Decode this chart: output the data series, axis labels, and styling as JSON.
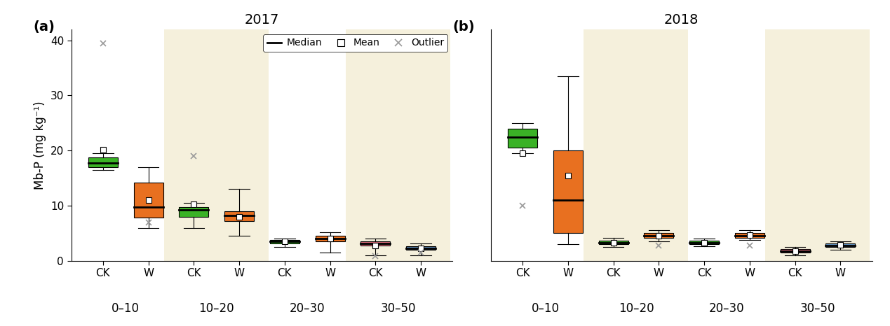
{
  "title_a": "2017",
  "title_b": "2018",
  "label_a": "(a)",
  "label_b": "(b)",
  "ylabel": "Mb-P (mg kg⁻¹)",
  "ylim": [
    0,
    42
  ],
  "yticks": [
    0,
    10,
    20,
    30,
    40
  ],
  "depth_labels": [
    "0–10",
    "10–20",
    "20–30",
    "30–50"
  ],
  "bg_color_shaded": "#f5f0dc",
  "green": "#3ab226",
  "orange": "#e87020",
  "red_box": "#e87080",
  "blue": "#6090c0",
  "outlier_color": "#999999",
  "panel_a": {
    "boxes": [
      {
        "x": 1,
        "q1": 17.0,
        "median": 17.8,
        "q3": 18.8,
        "whislo": 16.5,
        "whishi": 19.5,
        "mean": 20.2,
        "fliers": [
          39.5
        ],
        "color": "#3ab226"
      },
      {
        "x": 2,
        "q1": 7.8,
        "median": 9.8,
        "q3": 14.2,
        "whislo": 6.0,
        "whishi": 17.0,
        "mean": 11.0,
        "fliers": [
          7.0
        ],
        "color": "#e87020"
      },
      {
        "x": 3,
        "q1": 8.0,
        "median": 9.2,
        "q3": 9.8,
        "whislo": 6.0,
        "whishi": 10.5,
        "mean": 10.3,
        "fliers": [
          19.0
        ],
        "color": "#3ab226"
      },
      {
        "x": 4,
        "q1": 7.2,
        "median": 8.2,
        "q3": 9.0,
        "whislo": 4.5,
        "whishi": 13.0,
        "mean": 8.0,
        "fliers": [],
        "color": "#e87020"
      },
      {
        "x": 5,
        "q1": 3.2,
        "median": 3.5,
        "q3": 3.8,
        "whislo": 2.5,
        "whishi": 4.0,
        "mean": 3.5,
        "fliers": [],
        "color": "#3ab226"
      },
      {
        "x": 6,
        "q1": 3.5,
        "median": 4.0,
        "q3": 4.6,
        "whislo": 1.5,
        "whishi": 5.2,
        "mean": 4.0,
        "fliers": [],
        "color": "#e87020"
      },
      {
        "x": 7,
        "q1": 2.8,
        "median": 3.2,
        "q3": 3.5,
        "whislo": 1.0,
        "whishi": 4.0,
        "mean": 2.8,
        "fliers": [
          0.8
        ],
        "color": "#e87080"
      },
      {
        "x": 8,
        "q1": 2.0,
        "median": 2.3,
        "q3": 2.7,
        "whislo": 1.0,
        "whishi": 3.2,
        "mean": 2.2,
        "fliers": [
          1.5
        ],
        "color": "#6090c0"
      }
    ]
  },
  "panel_b": {
    "boxes": [
      {
        "x": 1,
        "q1": 20.5,
        "median": 22.5,
        "q3": 24.0,
        "whislo": 19.5,
        "whishi": 25.0,
        "mean": 19.5,
        "fliers": [
          10.0
        ],
        "color": "#3ab226"
      },
      {
        "x": 2,
        "q1": 5.0,
        "median": 11.0,
        "q3": 20.0,
        "whislo": 3.0,
        "whishi": 33.5,
        "mean": 15.5,
        "fliers": [],
        "color": "#e87020"
      },
      {
        "x": 3,
        "q1": 3.0,
        "median": 3.3,
        "q3": 3.7,
        "whislo": 2.5,
        "whishi": 4.2,
        "mean": 3.3,
        "fliers": [],
        "color": "#3ab226"
      },
      {
        "x": 4,
        "q1": 4.2,
        "median": 4.5,
        "q3": 5.0,
        "whislo": 3.5,
        "whishi": 5.5,
        "mean": 4.6,
        "fliers": [
          2.8
        ],
        "color": "#e87020"
      },
      {
        "x": 5,
        "q1": 3.0,
        "median": 3.3,
        "q3": 3.7,
        "whislo": 2.6,
        "whishi": 4.0,
        "mean": 3.3,
        "fliers": [],
        "color": "#3ab226"
      },
      {
        "x": 6,
        "q1": 4.2,
        "median": 4.6,
        "q3": 5.0,
        "whislo": 3.8,
        "whishi": 5.5,
        "mean": 4.7,
        "fliers": [
          2.8
        ],
        "color": "#e87020"
      },
      {
        "x": 7,
        "q1": 1.5,
        "median": 1.8,
        "q3": 2.1,
        "whislo": 1.0,
        "whishi": 2.5,
        "mean": 1.8,
        "fliers": [],
        "color": "#e87080"
      },
      {
        "x": 8,
        "q1": 2.5,
        "median": 2.8,
        "q3": 3.2,
        "whislo": 2.0,
        "whishi": 3.5,
        "mean": 2.9,
        "fliers": [],
        "color": "#6090c0"
      }
    ]
  }
}
